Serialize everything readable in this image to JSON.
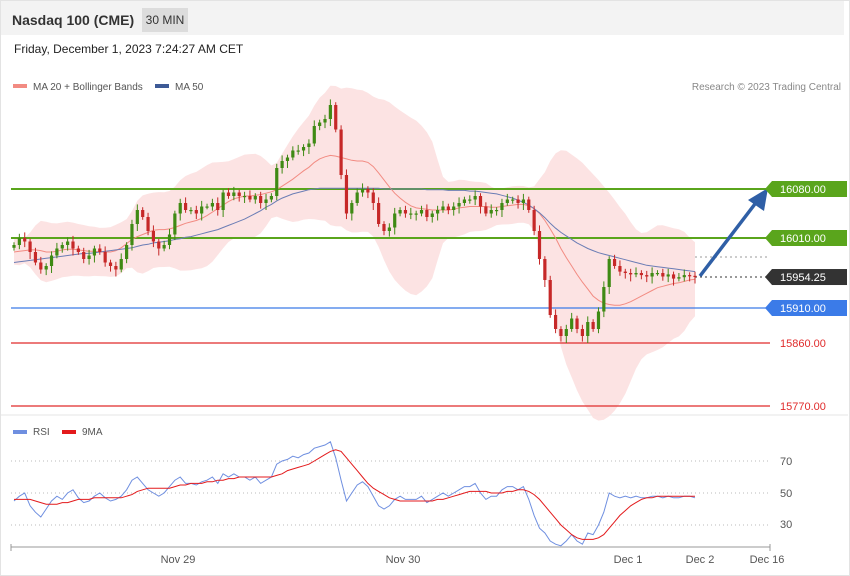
{
  "header": {
    "title": "Nasdaq 100 (CME)",
    "timeframe": "30 MIN",
    "datetime": "Friday, December 1, 2023 7:24:27 AM CET"
  },
  "legend_main": [
    {
      "label": "MA 20 + Bollinger Bands",
      "color": "#f28b82"
    },
    {
      "label": "MA 50",
      "color": "#3d5a96"
    }
  ],
  "legend_rsi": [
    {
      "label": "RSI",
      "color": "#6f8fe0"
    },
    {
      "label": "9MA",
      "color": "#e31a1c"
    }
  ],
  "credit": "Research © 2023 Trading Central",
  "chart_data": {
    "type": "candlestick",
    "instrument": "Nasdaq 100 (CME)",
    "interval": "30 MIN",
    "x_ticks": [
      "Nov 29",
      "Nov 30",
      "Dec 1",
      "Dec 2",
      "Dec 16"
    ],
    "ylim": [
      15750,
      16200
    ],
    "levels": [
      {
        "value": 16080.0,
        "label": "16080.00",
        "kind": "resistance",
        "color": "#5aa51c"
      },
      {
        "value": 16010.0,
        "label": "16010.00",
        "kind": "pivot",
        "color": "#5aa51c"
      },
      {
        "value": 15954.25,
        "label": "15954.25",
        "kind": "last",
        "color": "#333333"
      },
      {
        "value": 15910.0,
        "label": "15910.00",
        "kind": "support",
        "color": "#3b7be8"
      },
      {
        "value": 15860.0,
        "label": "15860.00",
        "kind": "support2",
        "color": "#e02b2b"
      },
      {
        "value": 15770.0,
        "label": "15770.00",
        "kind": "support3",
        "color": "#e02b2b"
      }
    ],
    "candles_close": [
      16000,
      16010,
      16005,
      15990,
      15975,
      15965,
      15970,
      15985,
      15995,
      16000,
      16005,
      15995,
      15990,
      15980,
      15985,
      15995,
      15990,
      15975,
      15970,
      15965,
      15980,
      16000,
      16030,
      16050,
      16040,
      16020,
      16005,
      15995,
      16000,
      16015,
      16045,
      16060,
      16050,
      16050,
      16045,
      16055,
      16055,
      16060,
      16050,
      16075,
      16070,
      16075,
      16070,
      16070,
      16065,
      16070,
      16060,
      16065,
      16070,
      16110,
      16120,
      16125,
      16135,
      16135,
      16140,
      16145,
      16170,
      16175,
      16180,
      16200,
      16165,
      16100,
      16045,
      16060,
      16075,
      16080,
      16075,
      16060,
      16030,
      16020,
      16025,
      16045,
      16050,
      16045,
      16045,
      16045,
      16050,
      16040,
      16045,
      16050,
      16055,
      16050,
      16055,
      16060,
      16065,
      16065,
      16070,
      16055,
      16045,
      16050,
      16050,
      16060,
      16065,
      16065,
      16060,
      16065,
      16050,
      16020,
      15980,
      15950,
      15900,
      15880,
      15870,
      15880,
      15895,
      15880,
      15870,
      15890,
      15880,
      15905,
      15940,
      15980,
      15970,
      15962,
      15960,
      15958,
      15960,
      15957,
      15955,
      15960,
      15960,
      15955,
      15958,
      15952,
      15954,
      15957,
      15956,
      15955
    ],
    "ma20": [
      15990,
      15991,
      15992,
      15993,
      15993,
      15992,
      15990,
      15990,
      15991,
      15993,
      15994,
      15994,
      15993,
      15992,
      15991,
      15991,
      15990,
      15990,
      15990,
      15992,
      15996,
      16002,
      16008,
      16012,
      16015,
      16018,
      16021,
      16022,
      16022,
      16023,
      16025,
      16028,
      16031,
      16033,
      16035,
      16038,
      16042,
      16047,
      16052,
      16057,
      16062,
      16066,
      16068,
      16070,
      16070,
      16071,
      16072,
      16074,
      16076,
      16079,
      16084,
      16089,
      16094,
      16100,
      16106,
      16111,
      16118,
      16123,
      16126,
      16128,
      16127,
      16125,
      16123,
      16121,
      16120,
      16120,
      16118,
      16112,
      16103,
      16093,
      16083,
      16074,
      16067,
      16061,
      16056,
      16053,
      16052,
      16051,
      16050,
      16050,
      16050,
      16050,
      16051,
      16053,
      16054,
      16055,
      16055,
      16055,
      16055,
      16054,
      16054,
      16055,
      16056,
      16057,
      16058,
      16058,
      16056,
      16052,
      16045,
      16035,
      16023,
      16010,
      15995,
      15982,
      15970,
      15958,
      15947,
      15937,
      15927,
      15921,
      15917,
      15915,
      15914,
      15914,
      15916,
      15919,
      15923,
      15927,
      15931,
      15935,
      15939,
      15941,
      15943,
      15945,
      15946,
      15948,
      15950,
      15951
    ],
    "ma50": [
      15975,
      15976,
      15977,
      15978,
      15979,
      15980,
      15981,
      15982,
      15983,
      15984,
      15985,
      15986,
      15987,
      15988,
      15988,
      15989,
      15990,
      15991,
      15992,
      15993,
      15994,
      15995,
      15996,
      15998,
      16000,
      16001,
      16003,
      16004,
      16005,
      16006,
      16008,
      16009,
      16011,
      16012,
      16014,
      16016,
      16018,
      16020,
      16022,
      16025,
      16028,
      16031,
      16034,
      16037,
      16041,
      16045,
      16049,
      16054,
      16058,
      16063,
      16067,
      16070,
      16073,
      16075,
      16077,
      16079,
      16080,
      16081,
      16081,
      16081,
      16081,
      16081,
      16081,
      16081,
      16081,
      16081,
      16081,
      16081,
      16081,
      16080,
      16080,
      16080,
      16080,
      16080,
      16080,
      16080,
      16080,
      16079,
      16079,
      16079,
      16079,
      16078,
      16078,
      16078,
      16078,
      16077,
      16077,
      16076,
      16075,
      16074,
      16073,
      16071,
      16069,
      16067,
      16064,
      16061,
      16057,
      16052,
      16046,
      16039,
      16031,
      16024,
      16018,
      16013,
      16008,
      16003,
      15999,
      15995,
      15992,
      15989,
      15987,
      15985,
      15983,
      15981,
      15979,
      15977,
      15975,
      15973,
      15971,
      15970,
      15969,
      15968,
      15967,
      15966,
      15965,
      15964,
      15963,
      15962
    ],
    "rsi": [
      45,
      48,
      50,
      42,
      38,
      35,
      40,
      45,
      48,
      46,
      50,
      52,
      47,
      44,
      45,
      48,
      50,
      47,
      45,
      46,
      48,
      52,
      58,
      60,
      56,
      52,
      50,
      48,
      50,
      54,
      58,
      60,
      56,
      56,
      55,
      57,
      58,
      60,
      56,
      62,
      60,
      62,
      60,
      60,
      58,
      60,
      56,
      58,
      60,
      68,
      70,
      71,
      73,
      72,
      74,
      75,
      78,
      79,
      80,
      82,
      72,
      58,
      45,
      50,
      55,
      57,
      54,
      48,
      42,
      40,
      42,
      46,
      48,
      46,
      46,
      46,
      48,
      44,
      46,
      48,
      50,
      48,
      50,
      52,
      54,
      54,
      56,
      50,
      46,
      48,
      48,
      52,
      54,
      54,
      52,
      54,
      46,
      36,
      28,
      25,
      20,
      18,
      17,
      20,
      24,
      20,
      18,
      25,
      24,
      30,
      38,
      50,
      48,
      47,
      48,
      47,
      48,
      47,
      47,
      48,
      48,
      47,
      48,
      47,
      47,
      48,
      48,
      47
    ],
    "rsi_ma9": [
      46,
      46,
      46,
      46,
      45,
      44,
      43,
      43,
      43,
      44,
      44,
      45,
      46,
      46,
      46,
      47,
      47,
      47,
      47,
      47,
      47,
      48,
      49,
      51,
      52,
      53,
      53,
      53,
      53,
      53,
      54,
      55,
      55,
      56,
      56,
      56,
      57,
      57,
      58,
      58,
      59,
      59,
      60,
      60,
      60,
      60,
      60,
      60,
      60,
      61,
      62,
      64,
      65,
      66,
      67,
      68,
      70,
      72,
      74,
      76,
      77,
      76,
      72,
      68,
      64,
      60,
      56,
      53,
      51,
      49,
      47,
      46,
      45,
      45,
      45,
      45,
      45,
      45,
      45,
      46,
      46,
      47,
      48,
      49,
      50,
      51,
      51,
      51,
      51,
      50,
      50,
      50,
      51,
      51,
      52,
      52,
      51,
      49,
      46,
      42,
      38,
      34,
      30,
      27,
      24,
      22,
      21,
      21,
      21,
      22,
      24,
      28,
      32,
      36,
      39,
      42,
      44,
      46,
      47,
      47,
      48,
      48,
      48,
      48,
      48,
      48,
      48,
      48
    ],
    "rsi_levels": [
      70,
      50,
      30
    ],
    "rsi_ylim": [
      0,
      100
    ]
  }
}
